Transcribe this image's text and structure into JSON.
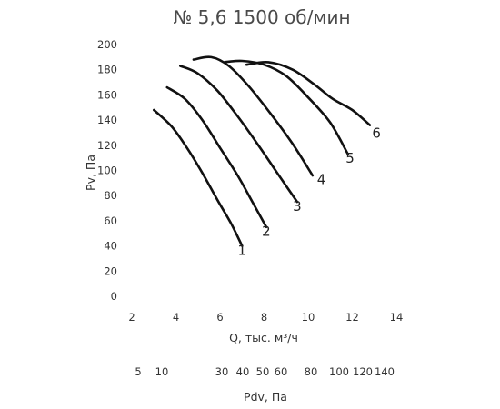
{
  "chart_data": {
    "type": "line",
    "title": "№ 5,6 1500 об/мин",
    "xlabel": "Q, тыс. м³/ч",
    "ylabel": "Pv, Па",
    "xlim": [
      2,
      14
    ],
    "ylim": [
      0,
      200
    ],
    "x_ticks": [
      "2",
      "4",
      "6",
      "8",
      "10",
      "12",
      "14"
    ],
    "y_ticks": [
      "0",
      "20",
      "40",
      "60",
      "80",
      "100",
      "120",
      "140",
      "160",
      "180",
      "200"
    ],
    "grid": false,
    "secondary_axis": {
      "label": "Pdv, Па",
      "ticks": [
        "5",
        "10",
        "30",
        "40",
        "50",
        "60",
        "80",
        "100",
        "120",
        "140"
      ]
    },
    "series": [
      {
        "name": "1",
        "x": [
          3.0,
          3.8,
          4.5,
          5.2,
          5.9,
          6.5,
          7.0
        ],
        "y": [
          148,
          135,
          118,
          98,
          76,
          58,
          40
        ]
      },
      {
        "name": "2",
        "x": [
          3.6,
          4.4,
          5.2,
          6.0,
          6.8,
          7.5,
          8.1
        ],
        "y": [
          166,
          157,
          140,
          118,
          96,
          74,
          55
        ]
      },
      {
        "name": "3",
        "x": [
          4.2,
          5.0,
          5.9,
          6.8,
          7.7,
          8.6,
          9.5
        ],
        "y": [
          183,
          177,
          163,
          143,
          121,
          98,
          75
        ]
      },
      {
        "name": "4",
        "x": [
          4.8,
          5.6,
          6.4,
          7.3,
          8.3,
          9.3,
          10.2
        ],
        "y": [
          188,
          190,
          183,
          167,
          145,
          121,
          96
        ]
      },
      {
        "name": "5",
        "x": [
          6.2,
          7.0,
          8.0,
          9.0,
          10.0,
          11.0,
          11.8
        ],
        "y": [
          186,
          187,
          184,
          175,
          158,
          138,
          113
        ]
      },
      {
        "name": "6",
        "x": [
          7.2,
          8.2,
          9.3,
          10.3,
          11.1,
          12.0,
          12.8
        ],
        "y": [
          184,
          186,
          180,
          168,
          157,
          148,
          136
        ]
      }
    ],
    "curve_labels": [
      {
        "text": "1",
        "x": 7.0,
        "y": 33
      },
      {
        "text": "2",
        "x": 8.1,
        "y": 48
      },
      {
        "text": "3",
        "x": 9.5,
        "y": 68
      },
      {
        "text": "4",
        "x": 10.6,
        "y": 89
      },
      {
        "text": "5",
        "x": 11.9,
        "y": 106
      },
      {
        "text": "6",
        "x": 13.1,
        "y": 126
      }
    ]
  }
}
